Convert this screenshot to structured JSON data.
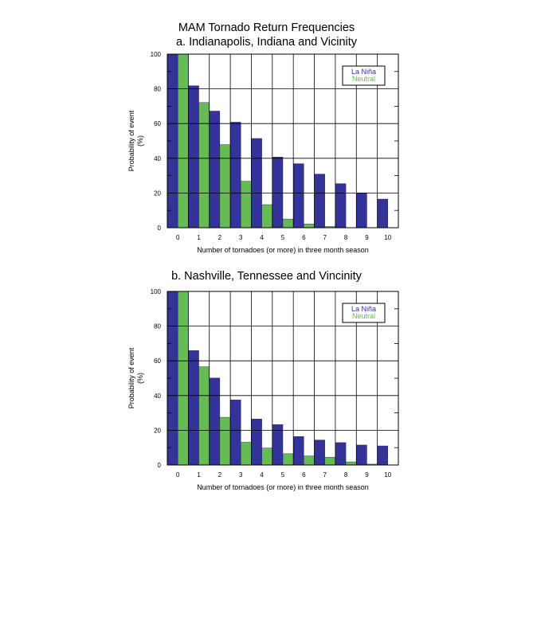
{
  "header": {
    "title": "MAM Tornado Return Frequencies"
  },
  "chart_data": [
    {
      "type": "bar",
      "title": "a. Indianapolis, Indiana and Vicinity",
      "xlabel": "Number of tornadoes (or more) in three month season",
      "ylabel_line1": "Probability of event",
      "ylabel_line2": "(%)",
      "categories": [
        "0",
        "1",
        "2",
        "3",
        "4",
        "5",
        "6",
        "7",
        "8",
        "9",
        "10"
      ],
      "ylim": [
        0,
        100
      ],
      "yticks": [
        "0",
        "20",
        "40",
        "60",
        "80",
        "100"
      ],
      "grid": "horizontal-and-vertical",
      "legend_placement": "top-right",
      "series": [
        {
          "name": "La Niña",
          "color": "#333399",
          "values": [
            100,
            81.8,
            67.2,
            60.8,
            51.4,
            40.7,
            36.9,
            30.9,
            25.4,
            20.1,
            16.5
          ]
        },
        {
          "name": "Neutral",
          "color": "#66bb55",
          "values": [
            100,
            72.1,
            47.9,
            26.8,
            13.3,
            5.0,
            2.2,
            0.7,
            0,
            0,
            0
          ]
        }
      ]
    },
    {
      "type": "bar",
      "title": "b. Nashville, Tennessee and Vincinity",
      "xlabel": "Number of tornadoes (or more) in three month season",
      "ylabel_line1": "Probability of event",
      "ylabel_line2": "(%)",
      "categories": [
        "0",
        "1",
        "2",
        "3",
        "4",
        "5",
        "6",
        "7",
        "8",
        "9",
        "10"
      ],
      "ylim": [
        0,
        100
      ],
      "yticks": [
        "0",
        "20",
        "40",
        "60",
        "80",
        "100"
      ],
      "grid": "horizontal-and-vertical",
      "legend_placement": "top-right",
      "series": [
        {
          "name": "La Niña",
          "color": "#333399",
          "values": [
            100,
            65.9,
            50.1,
            37.5,
            26.5,
            23.3,
            16.4,
            14.4,
            12.9,
            11.5,
            11.0
          ]
        },
        {
          "name": "Neutral",
          "color": "#66bb55",
          "values": [
            100,
            56.6,
            27.5,
            13.1,
            9.8,
            6.5,
            5.2,
            4.5,
            1.8,
            0.5,
            0
          ]
        }
      ]
    }
  ]
}
